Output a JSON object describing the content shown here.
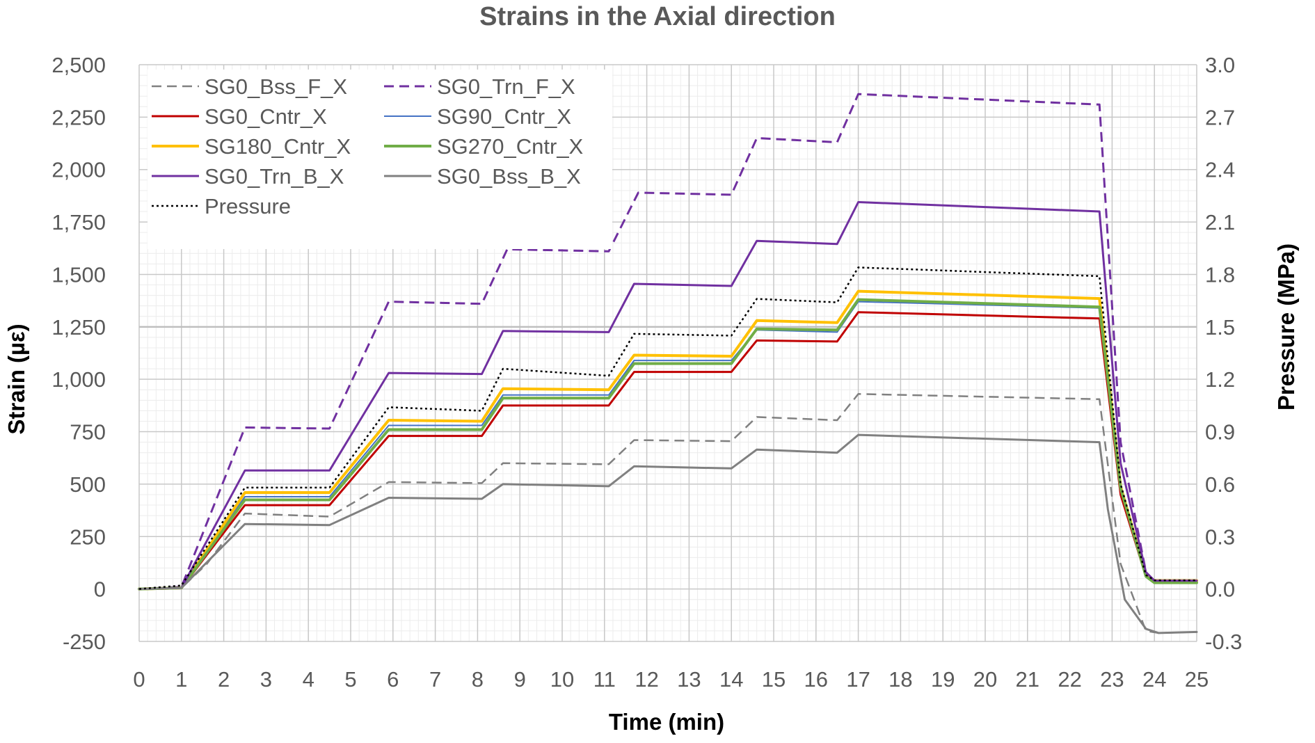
{
  "chart_data": {
    "type": "line",
    "title": "Strains in the Axial direction",
    "xlabel": "Time (min)",
    "ylabel": "Strain (µε)",
    "y2label": "Pressure (MPa)",
    "xlim": [
      0,
      25
    ],
    "ylim": [
      -250,
      2500
    ],
    "y2lim": [
      -0.3,
      3.0
    ],
    "x_ticks": [
      "0",
      "1",
      "2",
      "3",
      "4",
      "5",
      "6",
      "7",
      "8",
      "9",
      "10",
      "11",
      "12",
      "13",
      "14",
      "15",
      "16",
      "17",
      "18",
      "19",
      "20",
      "21",
      "22",
      "23",
      "24",
      "25"
    ],
    "y_ticks": [
      "2,500",
      "2,250",
      "2,000",
      "1,750",
      "1,500",
      "1,250",
      "1,000",
      "750",
      "500",
      "250",
      "0",
      "-250"
    ],
    "y2_ticks": [
      "3.0",
      "2.7",
      "2.4",
      "2.1",
      "1.8",
      "1.5",
      "1.2",
      "0.9",
      "0.6",
      "0.3",
      "0.0",
      "-0.3"
    ],
    "grid": true,
    "legend_position": "top-left",
    "series": [
      {
        "name": "SG0_Bss_F_X",
        "color": "#808080",
        "dash": "dash",
        "width": 2.5,
        "x": [
          0,
          1,
          1.6,
          2.5,
          4.5,
          5.9,
          8.1,
          8.6,
          11.1,
          11.7,
          14.0,
          14.6,
          16.5,
          17.0,
          22.7,
          23.2,
          23.8,
          24.1,
          25
        ],
        "y": [
          0,
          5,
          120,
          360,
          345,
          510,
          505,
          600,
          595,
          710,
          705,
          820,
          805,
          930,
          905,
          120,
          -200,
          -210,
          -205
        ]
      },
      {
        "name": "SG0_Trn_F_X",
        "color": "#7030A0",
        "dash": "dash",
        "width": 3,
        "x": [
          0,
          1,
          2.5,
          4.5,
          5.9,
          8.1,
          8.7,
          11.1,
          11.8,
          14.0,
          14.6,
          16.5,
          17.0,
          22.7,
          23.2,
          23.8,
          24.0,
          25
        ],
        "y": [
          0,
          10,
          770,
          765,
          1370,
          1360,
          1620,
          1610,
          1890,
          1880,
          2150,
          2130,
          2360,
          2310,
          700,
          80,
          40,
          35
        ]
      },
      {
        "name": "SG0_Cntr_X",
        "color": "#C00000",
        "dash": "solid",
        "width": 3,
        "x": [
          0,
          1,
          2.5,
          4.5,
          5.9,
          8.1,
          8.6,
          11.1,
          11.7,
          14.0,
          14.6,
          16.5,
          17.0,
          22.7,
          23.2,
          23.8,
          24.0,
          25
        ],
        "y": [
          0,
          5,
          400,
          400,
          730,
          730,
          875,
          875,
          1035,
          1035,
          1185,
          1180,
          1320,
          1290,
          450,
          60,
          30,
          30
        ]
      },
      {
        "name": "SG90_Cntr_X",
        "color": "#4472C4",
        "dash": "solid",
        "width": 2,
        "x": [
          0,
          1,
          2.5,
          4.5,
          5.9,
          8.1,
          8.6,
          11.1,
          11.7,
          14.0,
          14.6,
          16.5,
          17.0,
          22.7,
          23.2,
          23.8,
          24.0,
          25
        ],
        "y": [
          0,
          5,
          440,
          440,
          780,
          780,
          925,
          925,
          1090,
          1090,
          1235,
          1225,
          1370,
          1340,
          470,
          60,
          35,
          35
        ]
      },
      {
        "name": "SG180_Cntr_X",
        "color": "#FFC000",
        "dash": "solid",
        "width": 4,
        "x": [
          0,
          1,
          2.5,
          4.5,
          5.9,
          8.1,
          8.6,
          11.1,
          11.7,
          14.0,
          14.6,
          16.5,
          17.0,
          22.7,
          23.2,
          23.8,
          24.0,
          25
        ],
        "y": [
          0,
          5,
          460,
          460,
          805,
          800,
          955,
          950,
          1115,
          1110,
          1280,
          1270,
          1420,
          1385,
          490,
          65,
          40,
          40
        ]
      },
      {
        "name": "SG270_Cntr_X",
        "color": "#70AD47",
        "dash": "solid",
        "width": 4,
        "x": [
          0,
          1,
          2.5,
          4.5,
          5.9,
          8.1,
          8.6,
          11.1,
          11.7,
          14.0,
          14.6,
          16.5,
          17.0,
          22.7,
          23.2,
          23.8,
          24.0,
          25
        ],
        "y": [
          0,
          5,
          425,
          425,
          760,
          760,
          910,
          910,
          1075,
          1075,
          1240,
          1235,
          1380,
          1345,
          480,
          60,
          30,
          30
        ]
      },
      {
        "name": "SG0_Trn_B_X",
        "color": "#7030A0",
        "dash": "solid",
        "width": 3,
        "x": [
          0,
          1,
          2.5,
          4.5,
          5.9,
          8.1,
          8.6,
          11.1,
          11.7,
          14.0,
          14.6,
          16.5,
          17.0,
          22.7,
          23.2,
          23.8,
          24.0,
          25
        ],
        "y": [
          0,
          5,
          565,
          565,
          1030,
          1025,
          1230,
          1225,
          1455,
          1445,
          1660,
          1645,
          1845,
          1800,
          600,
          80,
          40,
          40
        ]
      },
      {
        "name": "SG0_Bss_B_X",
        "color": "#808080",
        "dash": "solid",
        "width": 3,
        "x": [
          0,
          1,
          2.5,
          4.5,
          5.9,
          8.1,
          8.6,
          11.1,
          11.7,
          14.0,
          14.6,
          16.5,
          17.0,
          22.7,
          22.9,
          23.3,
          23.8,
          24.1,
          25
        ],
        "y": [
          0,
          5,
          310,
          305,
          435,
          430,
          500,
          490,
          585,
          575,
          665,
          650,
          735,
          700,
          380,
          -50,
          -190,
          -210,
          -205
        ]
      },
      {
        "name": "Pressure",
        "color": "#000000",
        "dash": "dot",
        "width": 2.5,
        "axis": "right",
        "x": [
          0,
          1,
          2.5,
          4.5,
          5.9,
          8.1,
          8.6,
          11.1,
          11.7,
          14.0,
          14.6,
          16.5,
          17.0,
          22.7,
          23.2,
          23.8,
          24.0,
          25
        ],
        "y": [
          0,
          0.02,
          0.58,
          0.58,
          1.04,
          1.02,
          1.26,
          1.22,
          1.46,
          1.45,
          1.66,
          1.64,
          1.84,
          1.79,
          0.6,
          0.08,
          0.05,
          0.05
        ]
      }
    ]
  }
}
